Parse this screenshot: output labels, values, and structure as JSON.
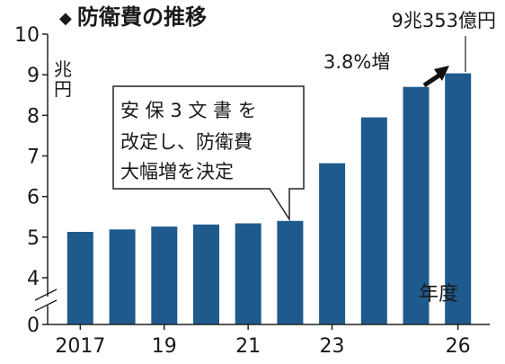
{
  "chart_data": {
    "type": "bar",
    "title": "防衛費の推移",
    "title_marker": "◆",
    "unit_label_lines": [
      "兆",
      "円"
    ],
    "x": [
      2017,
      2018,
      2019,
      2020,
      2021,
      2022,
      2023,
      2024,
      2025,
      2026
    ],
    "x_tick_labels": [
      "2017",
      "19",
      "21",
      "23",
      "26"
    ],
    "x_tick_indices": [
      0,
      2,
      4,
      6,
      9
    ],
    "xlabel": "年度",
    "values": [
      5.13,
      5.19,
      5.26,
      5.31,
      5.34,
      5.4,
      6.82,
      7.95,
      8.7,
      9.0353
    ],
    "ylim": [
      0,
      10
    ],
    "y_axis_break": true,
    "y_ticks": [
      0,
      4,
      5,
      6,
      7,
      8,
      9,
      10
    ],
    "bar_color": "#1f5a8c",
    "annotations": {
      "callout_lines": [
        "安 保 3 文 書 を",
        "改定し、防衛費",
        "大幅増を決定"
      ],
      "callout_target_index": 5,
      "last_value_label": "9兆353億円",
      "growth_label": "3.8%増"
    }
  }
}
